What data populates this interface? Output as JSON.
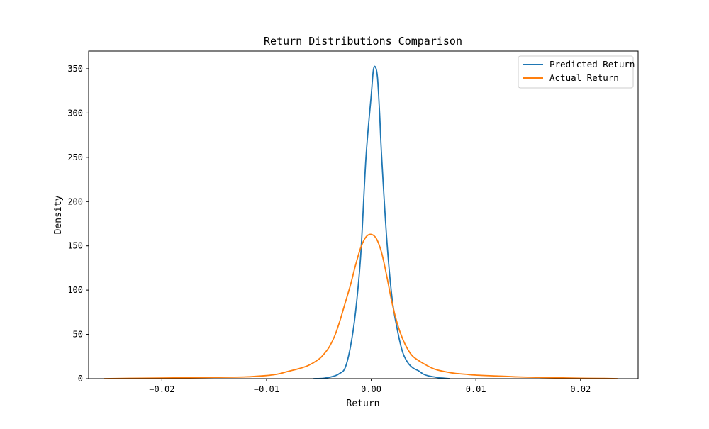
{
  "chart_data": {
    "type": "line",
    "title": "Return Distributions Comparison",
    "xlabel": "Return",
    "ylabel": "Density",
    "xlim": [
      -0.027,
      0.0255
    ],
    "ylim": [
      0,
      370
    ],
    "x_ticks": [
      -0.02,
      -0.01,
      0.0,
      0.01,
      0.02
    ],
    "x_tick_labels": [
      "−0.02",
      "−0.01",
      "0.00",
      "0.01",
      "0.02"
    ],
    "y_ticks": [
      0,
      50,
      100,
      150,
      200,
      250,
      300,
      350
    ],
    "y_tick_labels": [
      "0",
      "50",
      "100",
      "150",
      "200",
      "250",
      "300",
      "350"
    ],
    "grid": false,
    "legend_position": "top-right",
    "series": [
      {
        "name": "Predicted Return",
        "color": "#1f77b4",
        "x": [
          -0.0055,
          -0.0045,
          -0.0035,
          -0.003,
          -0.0025,
          -0.002,
          -0.0015,
          -0.001,
          -0.0005,
          0.0,
          0.0002,
          0.0004,
          0.0006,
          0.0008,
          0.001,
          0.0015,
          0.002,
          0.0025,
          0.003,
          0.0035,
          0.004,
          0.0045,
          0.005,
          0.0055,
          0.006,
          0.0065,
          0.007,
          0.0075
        ],
        "y": [
          0,
          0.5,
          3,
          6,
          12,
          35,
          75,
          140,
          250,
          320,
          348,
          352,
          340,
          300,
          250,
          155,
          90,
          55,
          30,
          18,
          12,
          9,
          5,
          3,
          2,
          1,
          0.5,
          0
        ]
      },
      {
        "name": "Actual Return",
        "color": "#ff7f0e",
        "x": [
          -0.0255,
          -0.022,
          -0.018,
          -0.015,
          -0.012,
          -0.01,
          -0.009,
          -0.008,
          -0.007,
          -0.006,
          -0.005,
          -0.0045,
          -0.004,
          -0.0035,
          -0.003,
          -0.0025,
          -0.002,
          -0.0015,
          -0.001,
          -0.0005,
          0.0,
          0.0005,
          0.001,
          0.0015,
          0.002,
          0.0025,
          0.003,
          0.0035,
          0.004,
          0.005,
          0.006,
          0.007,
          0.008,
          0.009,
          0.01,
          0.012,
          0.014,
          0.016,
          0.018,
          0.02,
          0.022,
          0.0235
        ],
        "y": [
          0,
          0.5,
          1,
          1.5,
          2,
          3.5,
          5,
          8,
          11,
          15,
          22,
          28,
          36,
          48,
          65,
          85,
          105,
          128,
          148,
          160,
          163,
          158,
          142,
          115,
          85,
          62,
          45,
          33,
          25,
          17,
          11,
          8,
          6,
          5,
          4,
          3,
          2,
          1.5,
          1,
          0.5,
          0.3,
          0
        ]
      }
    ]
  }
}
